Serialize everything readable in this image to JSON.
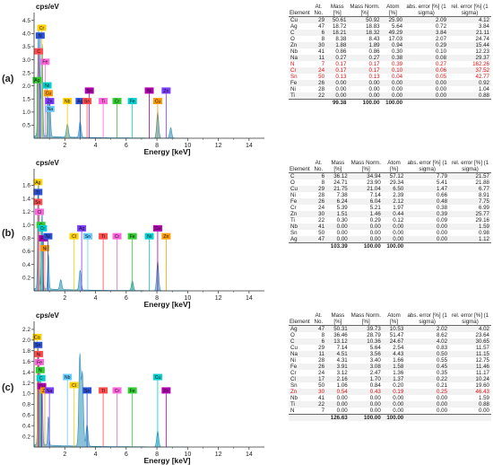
{
  "chart_data": [
    {
      "label": "(a)",
      "type": "area",
      "ylabel": "cps/eV",
      "xlabel": "Energy [keV]",
      "xlim": [
        0,
        15
      ],
      "ylim": [
        0,
        4.8
      ],
      "xticks": [
        2,
        4,
        6,
        8,
        10,
        12,
        14
      ],
      "yticks": [
        0.5,
        1.0,
        1.5,
        2.0,
        2.5,
        3.0,
        3.5,
        4.0,
        4.5
      ],
      "peaks": [
        {
          "x": 0.28,
          "y": 4.1
        },
        {
          "x": 0.39,
          "y": 1.6
        },
        {
          "x": 0.52,
          "y": 3.6
        },
        {
          "x": 0.93,
          "y": 1.5
        },
        {
          "x": 1.04,
          "y": 1.2
        },
        {
          "x": 2.17,
          "y": 0.5
        },
        {
          "x": 3.0,
          "y": 0.6
        },
        {
          "x": 8.05,
          "y": 1.0
        },
        {
          "x": 8.9,
          "y": 0.4
        }
      ],
      "element_labels": [
        {
          "text": "Cr",
          "x": 0.5,
          "y": 4.1
        },
        {
          "text": "N",
          "x": 0.4,
          "y": 3.8
        },
        {
          "text": "C",
          "x": 0.3,
          "y": 3.2
        },
        {
          "text": "Fe",
          "x": 0.72,
          "y": 2.8
        },
        {
          "text": "Ag",
          "x": 0.2,
          "y": 2.1
        },
        {
          "text": "Ni",
          "x": 0.85,
          "y": 1.9
        },
        {
          "text": "Sn",
          "x": 3.6,
          "y": 1.7
        },
        {
          "text": "Cu",
          "x": 0.93,
          "y": 1.6
        },
        {
          "text": "Zn",
          "x": 1.02,
          "y": 1.3
        },
        {
          "text": "Na",
          "x": 1.04,
          "y": 1.0
        },
        {
          "text": "Nb",
          "x": 2.17,
          "y": 1.3
        },
        {
          "text": "Ag",
          "x": 3.0,
          "y": 1.3
        },
        {
          "text": "Sn",
          "x": 3.45,
          "y": 1.3
        },
        {
          "text": "Ti",
          "x": 4.5,
          "y": 1.3
        },
        {
          "text": "Cr",
          "x": 5.4,
          "y": 1.3
        },
        {
          "text": "Fe",
          "x": 6.4,
          "y": 1.3
        },
        {
          "text": "Ni",
          "x": 7.5,
          "y": 1.7
        },
        {
          "text": "Cu",
          "x": 8.05,
          "y": 1.3
        },
        {
          "text": "Zn",
          "x": 8.6,
          "y": 1.7
        }
      ],
      "table": {
        "headers": [
          "Element",
          "At. No.",
          "Mass [%]",
          "Mass Norm. [%]",
          "Atom [%]",
          "abs. error [%] (1 sigma)",
          "rel. error [%] (1 sigma)"
        ],
        "rows": [
          [
            "Cu",
            "29",
            "50.61",
            "50.92",
            "25.90",
            "2.09",
            "4.12"
          ],
          [
            "Ag",
            "47",
            "18.72",
            "18.83",
            "5.64",
            "0.72",
            "3.84"
          ],
          [
            "C",
            "6",
            "18.21",
            "18.32",
            "49.29",
            "3.84",
            "21.11"
          ],
          [
            "O",
            "8",
            "8.38",
            "8.43",
            "17.03",
            "2.07",
            "24.74"
          ],
          [
            "Zn",
            "30",
            "1.88",
            "1.89",
            "0.94",
            "0.29",
            "15.44"
          ],
          [
            "Nb",
            "41",
            "0.86",
            "0.86",
            "0.30",
            "0.10",
            "12.23"
          ],
          [
            "Na",
            "11",
            "0.27",
            "0.27",
            "0.38",
            "0.08",
            "29.37"
          ],
          [
            "N",
            "7",
            "0.17",
            "0.17",
            "0.39",
            "0.27",
            "162.26"
          ],
          [
            "Cr",
            "24",
            "0.17",
            "0.17",
            "0.10",
            "0.06",
            "37.52"
          ],
          [
            "Sn",
            "50",
            "0.13",
            "0.13",
            "0.04",
            "0.05",
            "42.77"
          ],
          [
            "Fe",
            "26",
            "0.00",
            "0.00",
            "0.00",
            "0.00",
            "0.92"
          ],
          [
            "Ni",
            "28",
            "0.00",
            "0.00",
            "0.00",
            "0.00",
            "1.04"
          ],
          [
            "Ti",
            "22",
            "0.00",
            "0.00",
            "0.00",
            "0.00",
            "0.88"
          ]
        ],
        "red_rows": [
          7,
          8,
          9
        ],
        "sum": [
          "",
          "",
          "99.38",
          "100.00",
          "100.00",
          "",
          ""
        ]
      }
    },
    {
      "label": "(b)",
      "type": "area",
      "ylabel": "cps/eV",
      "xlabel": "Energy [keV]",
      "xlim": [
        0,
        15
      ],
      "ylim": [
        0,
        1.85
      ],
      "xticks": [
        2,
        4,
        6,
        8,
        10,
        12,
        14
      ],
      "yticks": [
        0.2,
        0.4,
        0.6,
        0.8,
        1.0,
        1.2,
        1.4,
        1.6
      ],
      "peaks": [
        {
          "x": 0.28,
          "y": 1.7
        },
        {
          "x": 0.52,
          "y": 1.2
        },
        {
          "x": 0.93,
          "y": 0.55
        },
        {
          "x": 1.74,
          "y": 0.15
        },
        {
          "x": 3.0,
          "y": 0.3
        },
        {
          "x": 6.4,
          "y": 0.15
        },
        {
          "x": 8.05,
          "y": 0.45
        }
      ],
      "element_labels": [
        {
          "text": "Ag",
          "x": 0.25,
          "y": 1.6
        },
        {
          "text": "Ti",
          "x": 0.25,
          "y": 1.45
        },
        {
          "text": "Sn",
          "x": 0.25,
          "y": 1.3
        },
        {
          "text": "Cl",
          "x": 0.35,
          "y": 1.15
        },
        {
          "text": "C",
          "x": 0.45,
          "y": 0.95
        },
        {
          "text": "Cr",
          "x": 0.55,
          "y": 0.9
        },
        {
          "text": "Fe",
          "x": 0.6,
          "y": 0.75
        },
        {
          "text": "Ni",
          "x": 0.7,
          "y": 0.6
        },
        {
          "text": "Ag",
          "x": 3.1,
          "y": 0.9
        },
        {
          "text": "Sn",
          "x": 3.5,
          "y": 0.78
        },
        {
          "text": "Cl",
          "x": 2.6,
          "y": 0.78
        },
        {
          "text": "Ni",
          "x": 0.9,
          "y": 0.78
        },
        {
          "text": "Ti",
          "x": 4.5,
          "y": 0.78
        },
        {
          "text": "Cr",
          "x": 5.4,
          "y": 0.78
        },
        {
          "text": "Fe",
          "x": 6.4,
          "y": 0.78
        },
        {
          "text": "Ni",
          "x": 7.5,
          "y": 0.78
        },
        {
          "text": "Cu",
          "x": 8.05,
          "y": 0.9
        },
        {
          "text": "Zn",
          "x": 8.6,
          "y": 0.78
        }
      ],
      "table": {
        "headers": [
          "Element",
          "At. No.",
          "Mass [%]",
          "Mass Norm. [%]",
          "Atom [%]",
          "abs. error [%] (1 sigma)",
          "rel. error [%] (1 sigma)"
        ],
        "rows": [
          [
            "C",
            "6",
            "36.12",
            "34.94",
            "57.12",
            "7.79",
            "21.57"
          ],
          [
            "O",
            "8",
            "24.71",
            "23.90",
            "29.34",
            "5.41",
            "21.88"
          ],
          [
            "Cu",
            "29",
            "21.75",
            "21.04",
            "6.50",
            "1.47",
            "6.77"
          ],
          [
            "Ni",
            "28",
            "7.38",
            "7.14",
            "2.39",
            "0.66",
            "8.91"
          ],
          [
            "Fe",
            "26",
            "6.24",
            "6.04",
            "2.12",
            "0.48",
            "7.75"
          ],
          [
            "Cr",
            "24",
            "5.39",
            "5.21",
            "1.97",
            "0.38",
            "6.99"
          ],
          [
            "Zn",
            "30",
            "1.51",
            "1.46",
            "0.44",
            "0.39",
            "25.77"
          ],
          [
            "Ti",
            "22",
            "0.30",
            "0.29",
            "0.12",
            "0.09",
            "29.16"
          ],
          [
            "Nb",
            "41",
            "0.00",
            "0.00",
            "0.00",
            "0.00",
            "1.59"
          ],
          [
            "Sn",
            "50",
            "0.00",
            "0.00",
            "0.00",
            "0.00",
            "0.98"
          ],
          [
            "Ag",
            "47",
            "0.00",
            "0.00",
            "0.00",
            "0.00",
            "1.12"
          ]
        ],
        "red_rows": [],
        "sum": [
          "",
          "",
          "103.39",
          "100.00",
          "100.00",
          "",
          ""
        ]
      }
    },
    {
      "label": "(c)",
      "type": "area",
      "ylabel": "cps/eV",
      "xlabel": "Energy [keV]",
      "xlim": [
        0,
        15
      ],
      "ylim": [
        0,
        2.35
      ],
      "xticks": [
        2,
        4,
        6,
        8,
        10,
        12,
        14
      ],
      "yticks": [
        0.2,
        0.4,
        0.6,
        0.8,
        1.0,
        1.2,
        1.4,
        1.6,
        1.8,
        2.0,
        2.2
      ],
      "peaks": [
        {
          "x": 0.28,
          "y": 1.7
        },
        {
          "x": 0.52,
          "y": 1.2
        },
        {
          "x": 0.93,
          "y": 0.55
        },
        {
          "x": 2.98,
          "y": 1.7
        },
        {
          "x": 3.15,
          "y": 1.35
        },
        {
          "x": 3.45,
          "y": 0.4
        },
        {
          "x": 8.05,
          "y": 0.3
        }
      ],
      "element_labels": [
        {
          "text": "Ca",
          "x": 0.2,
          "y": 2.0
        },
        {
          "text": "Sn",
          "x": 0.25,
          "y": 1.85
        },
        {
          "text": "Ni",
          "x": 0.3,
          "y": 1.68
        },
        {
          "text": "Fe",
          "x": 0.35,
          "y": 1.53
        },
        {
          "text": "N",
          "x": 0.4,
          "y": 1.38
        },
        {
          "text": "C",
          "x": 0.45,
          "y": 1.23
        },
        {
          "text": "Cu",
          "x": 0.5,
          "y": 1.08
        },
        {
          "text": "Zn",
          "x": 0.7,
          "y": 1.0
        },
        {
          "text": "Na",
          "x": 1.0,
          "y": 1.0
        },
        {
          "text": "Nb",
          "x": 2.17,
          "y": 1.25
        },
        {
          "text": "Cl",
          "x": 2.6,
          "y": 1.1
        },
        {
          "text": "Sn",
          "x": 3.45,
          "y": 1.0
        },
        {
          "text": "Ti",
          "x": 4.5,
          "y": 1.0
        },
        {
          "text": "Cr",
          "x": 5.4,
          "y": 1.0
        },
        {
          "text": "Fe",
          "x": 6.4,
          "y": 1.0
        },
        {
          "text": "Cu",
          "x": 8.05,
          "y": 1.25
        },
        {
          "text": "Zn",
          "x": 8.6,
          "y": 1.0
        }
      ],
      "table": {
        "headers": [
          "Element",
          "At. No.",
          "Mass [%]",
          "Mass Norm. [%]",
          "Atom [%]",
          "abs. error [%] (1 sigma)",
          "rel. error [%] (1 sigma)"
        ],
        "rows": [
          [
            "Ag",
            "47",
            "50.31",
            "39.73",
            "10.53",
            "2.02",
            "4.02"
          ],
          [
            "O",
            "8",
            "36.46",
            "28.79",
            "51.47",
            "8.62",
            "23.64"
          ],
          [
            "C",
            "6",
            "13.12",
            "10.36",
            "24.67",
            "4.02",
            "30.65"
          ],
          [
            "Cu",
            "29",
            "7.14",
            "5.64",
            "2.54",
            "0.83",
            "11.57"
          ],
          [
            "Na",
            "11",
            "4.51",
            "3.56",
            "4.43",
            "0.50",
            "11.15"
          ],
          [
            "Ni",
            "28",
            "4.31",
            "3.40",
            "1.66",
            "0.55",
            "12.75"
          ],
          [
            "Fe",
            "26",
            "3.91",
            "3.08",
            "1.58",
            "0.45",
            "11.46"
          ],
          [
            "Cr",
            "24",
            "3.12",
            "2.47",
            "1.36",
            "0.35",
            "11.17"
          ],
          [
            "Cl",
            "17",
            "2.16",
            "1.70",
            "1.37",
            "0.22",
            "10.24"
          ],
          [
            "Sn",
            "50",
            "1.06",
            "0.84",
            "0.20",
            "0.21",
            "19.60"
          ],
          [
            "Zn",
            "30",
            "0.54",
            "0.43",
            "0.19",
            "0.25",
            "46.43"
          ],
          [
            "Nb",
            "41",
            "0.00",
            "0.00",
            "0.00",
            "0.00",
            "1.59"
          ],
          [
            "Ti",
            "22",
            "0.00",
            "0.00",
            "0.00",
            "0.00",
            "0.88"
          ],
          [
            "N",
            "7",
            "0.00",
            "0.00",
            "0.00",
            "0.00",
            "0.00"
          ]
        ],
        "red_rows": [
          10
        ],
        "sum": [
          "",
          "",
          "126.63",
          "100.00",
          "100.00",
          "",
          ""
        ]
      }
    }
  ],
  "colors": {
    "spectrum": "#2a8fb8",
    "axis": "#333333",
    "red_text": "#dd1111",
    "label_palette": [
      "#ffd000",
      "#2a50d8",
      "#ff4d4d",
      "#ff66dd",
      "#33cc33",
      "#00d0d0",
      "#b000b0",
      "#ff9900",
      "#7a3cff",
      "#66ccff"
    ]
  }
}
